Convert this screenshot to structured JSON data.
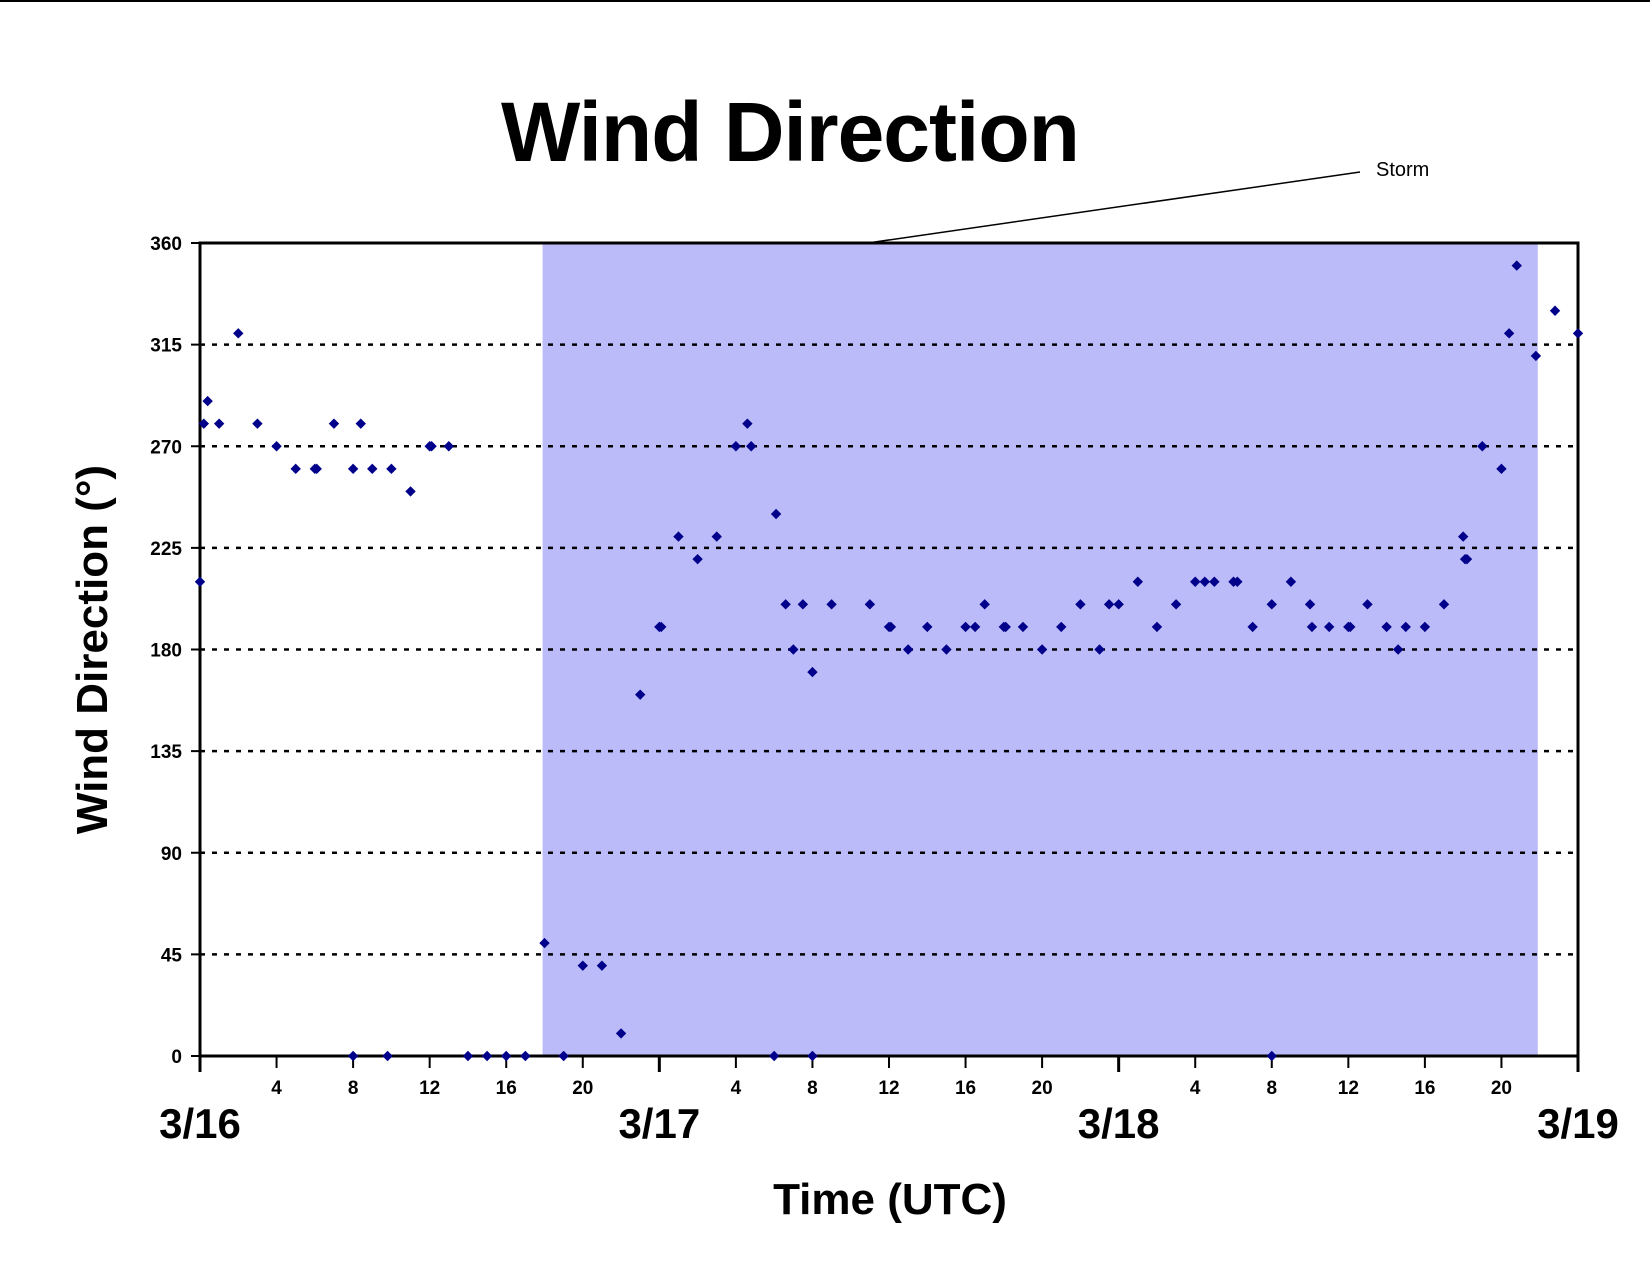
{
  "chart_data": {
    "type": "scatter",
    "title": "Wind Direction",
    "xlabel": "Time (UTC)",
    "ylabel": "Wind Direction (°)",
    "x_unit": "hours UTC from 3/16 00:00",
    "xlim": [
      0,
      72
    ],
    "ylim": [
      0,
      360
    ],
    "yticks": [
      0,
      45,
      90,
      135,
      180,
      225,
      270,
      315,
      360
    ],
    "grid": "horizontal dotted",
    "hour_ticks": [
      {
        "x": 4,
        "label": "4"
      },
      {
        "x": 8,
        "label": "8"
      },
      {
        "x": 12,
        "label": "12"
      },
      {
        "x": 16,
        "label": "16"
      },
      {
        "x": 20,
        "label": "20"
      },
      {
        "x": 28,
        "label": "4"
      },
      {
        "x": 32,
        "label": "8"
      },
      {
        "x": 36,
        "label": "12"
      },
      {
        "x": 40,
        "label": "16"
      },
      {
        "x": 44,
        "label": "20"
      },
      {
        "x": 52,
        "label": "4"
      },
      {
        "x": 56,
        "label": "8"
      },
      {
        "x": 60,
        "label": "12"
      },
      {
        "x": 64,
        "label": "16"
      },
      {
        "x": 68,
        "label": "20"
      }
    ],
    "date_ticks": [
      {
        "x": 0,
        "label": "3/16"
      },
      {
        "x": 24,
        "label": "3/17"
      },
      {
        "x": 48,
        "label": "3/18"
      },
      {
        "x": 72,
        "label": "3/19"
      }
    ],
    "shaded_region": {
      "label": "Storm",
      "x_start": 17.9,
      "x_end": 69.9,
      "color": "#bbbbf9"
    },
    "marker_color": "#00008b",
    "points": [
      [
        0,
        210
      ],
      [
        0.2,
        280
      ],
      [
        0.4,
        290
      ],
      [
        1,
        280
      ],
      [
        2,
        320
      ],
      [
        3,
        280
      ],
      [
        4,
        270
      ],
      [
        5,
        260
      ],
      [
        6,
        260
      ],
      [
        6.1,
        260
      ],
      [
        7,
        280
      ],
      [
        8,
        260
      ],
      [
        8,
        0
      ],
      [
        8.4,
        280
      ],
      [
        9,
        260
      ],
      [
        9.8,
        0
      ],
      [
        10,
        260
      ],
      [
        11,
        250
      ],
      [
        12,
        270
      ],
      [
        12.1,
        270
      ],
      [
        13,
        270
      ],
      [
        14,
        0
      ],
      [
        15,
        0
      ],
      [
        16,
        0
      ],
      [
        17,
        0
      ],
      [
        18,
        50
      ],
      [
        19,
        0
      ],
      [
        20,
        40
      ],
      [
        21,
        40
      ],
      [
        22,
        10
      ],
      [
        23,
        160
      ],
      [
        24,
        190
      ],
      [
        24.1,
        190
      ],
      [
        25,
        230
      ],
      [
        26,
        220
      ],
      [
        27,
        230
      ],
      [
        28,
        270
      ],
      [
        28.6,
        280
      ],
      [
        28.8,
        270
      ],
      [
        30,
        0
      ],
      [
        30.1,
        240
      ],
      [
        30.6,
        200
      ],
      [
        31,
        180
      ],
      [
        31.5,
        200
      ],
      [
        32,
        170
      ],
      [
        32,
        0
      ],
      [
        33,
        200
      ],
      [
        35,
        200
      ],
      [
        36,
        190
      ],
      [
        36.1,
        190
      ],
      [
        37,
        180
      ],
      [
        38,
        190
      ],
      [
        39,
        180
      ],
      [
        40,
        190
      ],
      [
        40.5,
        190
      ],
      [
        41,
        200
      ],
      [
        42,
        190
      ],
      [
        42.1,
        190
      ],
      [
        43,
        190
      ],
      [
        44,
        180
      ],
      [
        45,
        190
      ],
      [
        46,
        200
      ],
      [
        47,
        180
      ],
      [
        47.5,
        200
      ],
      [
        48,
        200
      ],
      [
        49,
        210
      ],
      [
        50,
        190
      ],
      [
        51,
        200
      ],
      [
        52,
        210
      ],
      [
        52.5,
        210
      ],
      [
        53,
        210
      ],
      [
        54,
        210
      ],
      [
        54.2,
        210
      ],
      [
        55,
        190
      ],
      [
        56,
        200
      ],
      [
        56,
        0
      ],
      [
        57,
        210
      ],
      [
        58,
        200
      ],
      [
        58.1,
        190
      ],
      [
        59,
        190
      ],
      [
        60,
        190
      ],
      [
        60.1,
        190
      ],
      [
        61,
        200
      ],
      [
        62,
        190
      ],
      [
        62.6,
        180
      ],
      [
        63,
        190
      ],
      [
        64,
        190
      ],
      [
        65,
        200
      ],
      [
        66,
        230
      ],
      [
        66.1,
        220
      ],
      [
        66.2,
        220
      ],
      [
        67,
        270
      ],
      [
        68,
        260
      ],
      [
        68.4,
        320
      ],
      [
        68.8,
        350
      ],
      [
        69.8,
        310
      ],
      [
        70.8,
        330
      ],
      [
        72,
        320
      ]
    ]
  }
}
